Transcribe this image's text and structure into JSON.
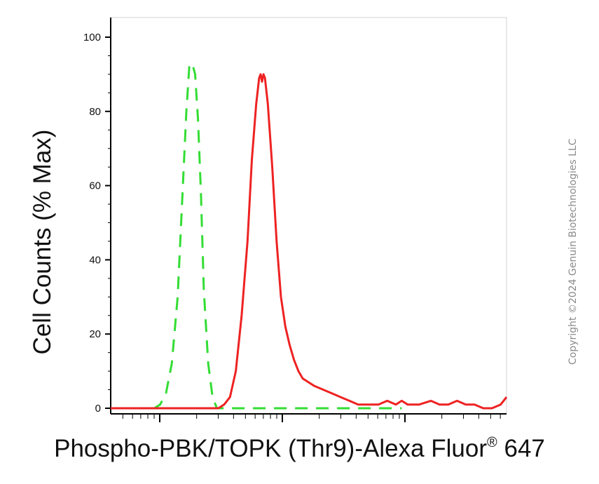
{
  "chart_data": {
    "type": "line",
    "xlabel_main": "Phospho-PBK/TOPK (Thr9)-Alexa Fluor",
    "xlabel_reg": "®",
    "xlabel_tail": " 647",
    "ylabel": "Cell Counts (% Max)",
    "ylim": [
      0,
      100
    ],
    "yticks": [
      "0",
      "20",
      "40",
      "60",
      "80",
      "100"
    ],
    "x_scale": "log",
    "x_tick_labels": "none",
    "grid": false,
    "colors": {
      "series_0": "#33dd33",
      "series_1": "#ee2222"
    },
    "series": [
      {
        "style": "dashed",
        "color": "#33dd33",
        "points": [
          [
            0.0,
            0
          ],
          [
            0.15,
            0
          ],
          [
            0.17,
            1
          ],
          [
            0.19,
            4
          ],
          [
            0.21,
            12
          ],
          [
            0.23,
            30
          ],
          [
            0.245,
            55
          ],
          [
            0.26,
            80
          ],
          [
            0.27,
            92
          ],
          [
            0.28,
            93
          ],
          [
            0.29,
            90
          ],
          [
            0.3,
            78
          ],
          [
            0.31,
            58
          ],
          [
            0.32,
            32
          ],
          [
            0.335,
            12
          ],
          [
            0.35,
            3
          ],
          [
            0.365,
            0
          ],
          [
            1.0,
            0
          ]
        ]
      },
      {
        "style": "solid",
        "color": "#ee2222",
        "points": [
          [
            0.0,
            0
          ],
          [
            0.37,
            0
          ],
          [
            0.39,
            1
          ],
          [
            0.41,
            3
          ],
          [
            0.43,
            10
          ],
          [
            0.45,
            25
          ],
          [
            0.47,
            45
          ],
          [
            0.485,
            67
          ],
          [
            0.5,
            82
          ],
          [
            0.51,
            89
          ],
          [
            0.515,
            90
          ],
          [
            0.52,
            88
          ],
          [
            0.525,
            90
          ],
          [
            0.53,
            89
          ],
          [
            0.54,
            82
          ],
          [
            0.555,
            65
          ],
          [
            0.57,
            45
          ],
          [
            0.585,
            30
          ],
          [
            0.6,
            22
          ],
          [
            0.615,
            17
          ],
          [
            0.63,
            13
          ],
          [
            0.645,
            10
          ],
          [
            0.66,
            8
          ],
          [
            0.68,
            7
          ],
          [
            0.7,
            6
          ],
          [
            0.73,
            5
          ],
          [
            0.76,
            4
          ],
          [
            0.79,
            3
          ],
          [
            0.82,
            2
          ],
          [
            0.85,
            1
          ],
          [
            0.88,
            1
          ],
          [
            0.92,
            1
          ],
          [
            0.95,
            2
          ],
          [
            0.98,
            1
          ],
          [
            1.0,
            2
          ],
          [
            1.02,
            1
          ],
          [
            1.06,
            1
          ],
          [
            1.1,
            2
          ],
          [
            1.13,
            1
          ],
          [
            1.16,
            1
          ],
          [
            1.19,
            2
          ],
          [
            1.22,
            1
          ],
          [
            1.25,
            1
          ],
          [
            1.28,
            0
          ],
          [
            1.31,
            0
          ],
          [
            1.34,
            1
          ],
          [
            1.36,
            3
          ]
        ]
      }
    ]
  },
  "watermark": "Copyright ©2024 Genuin Biotechnologies LLC"
}
